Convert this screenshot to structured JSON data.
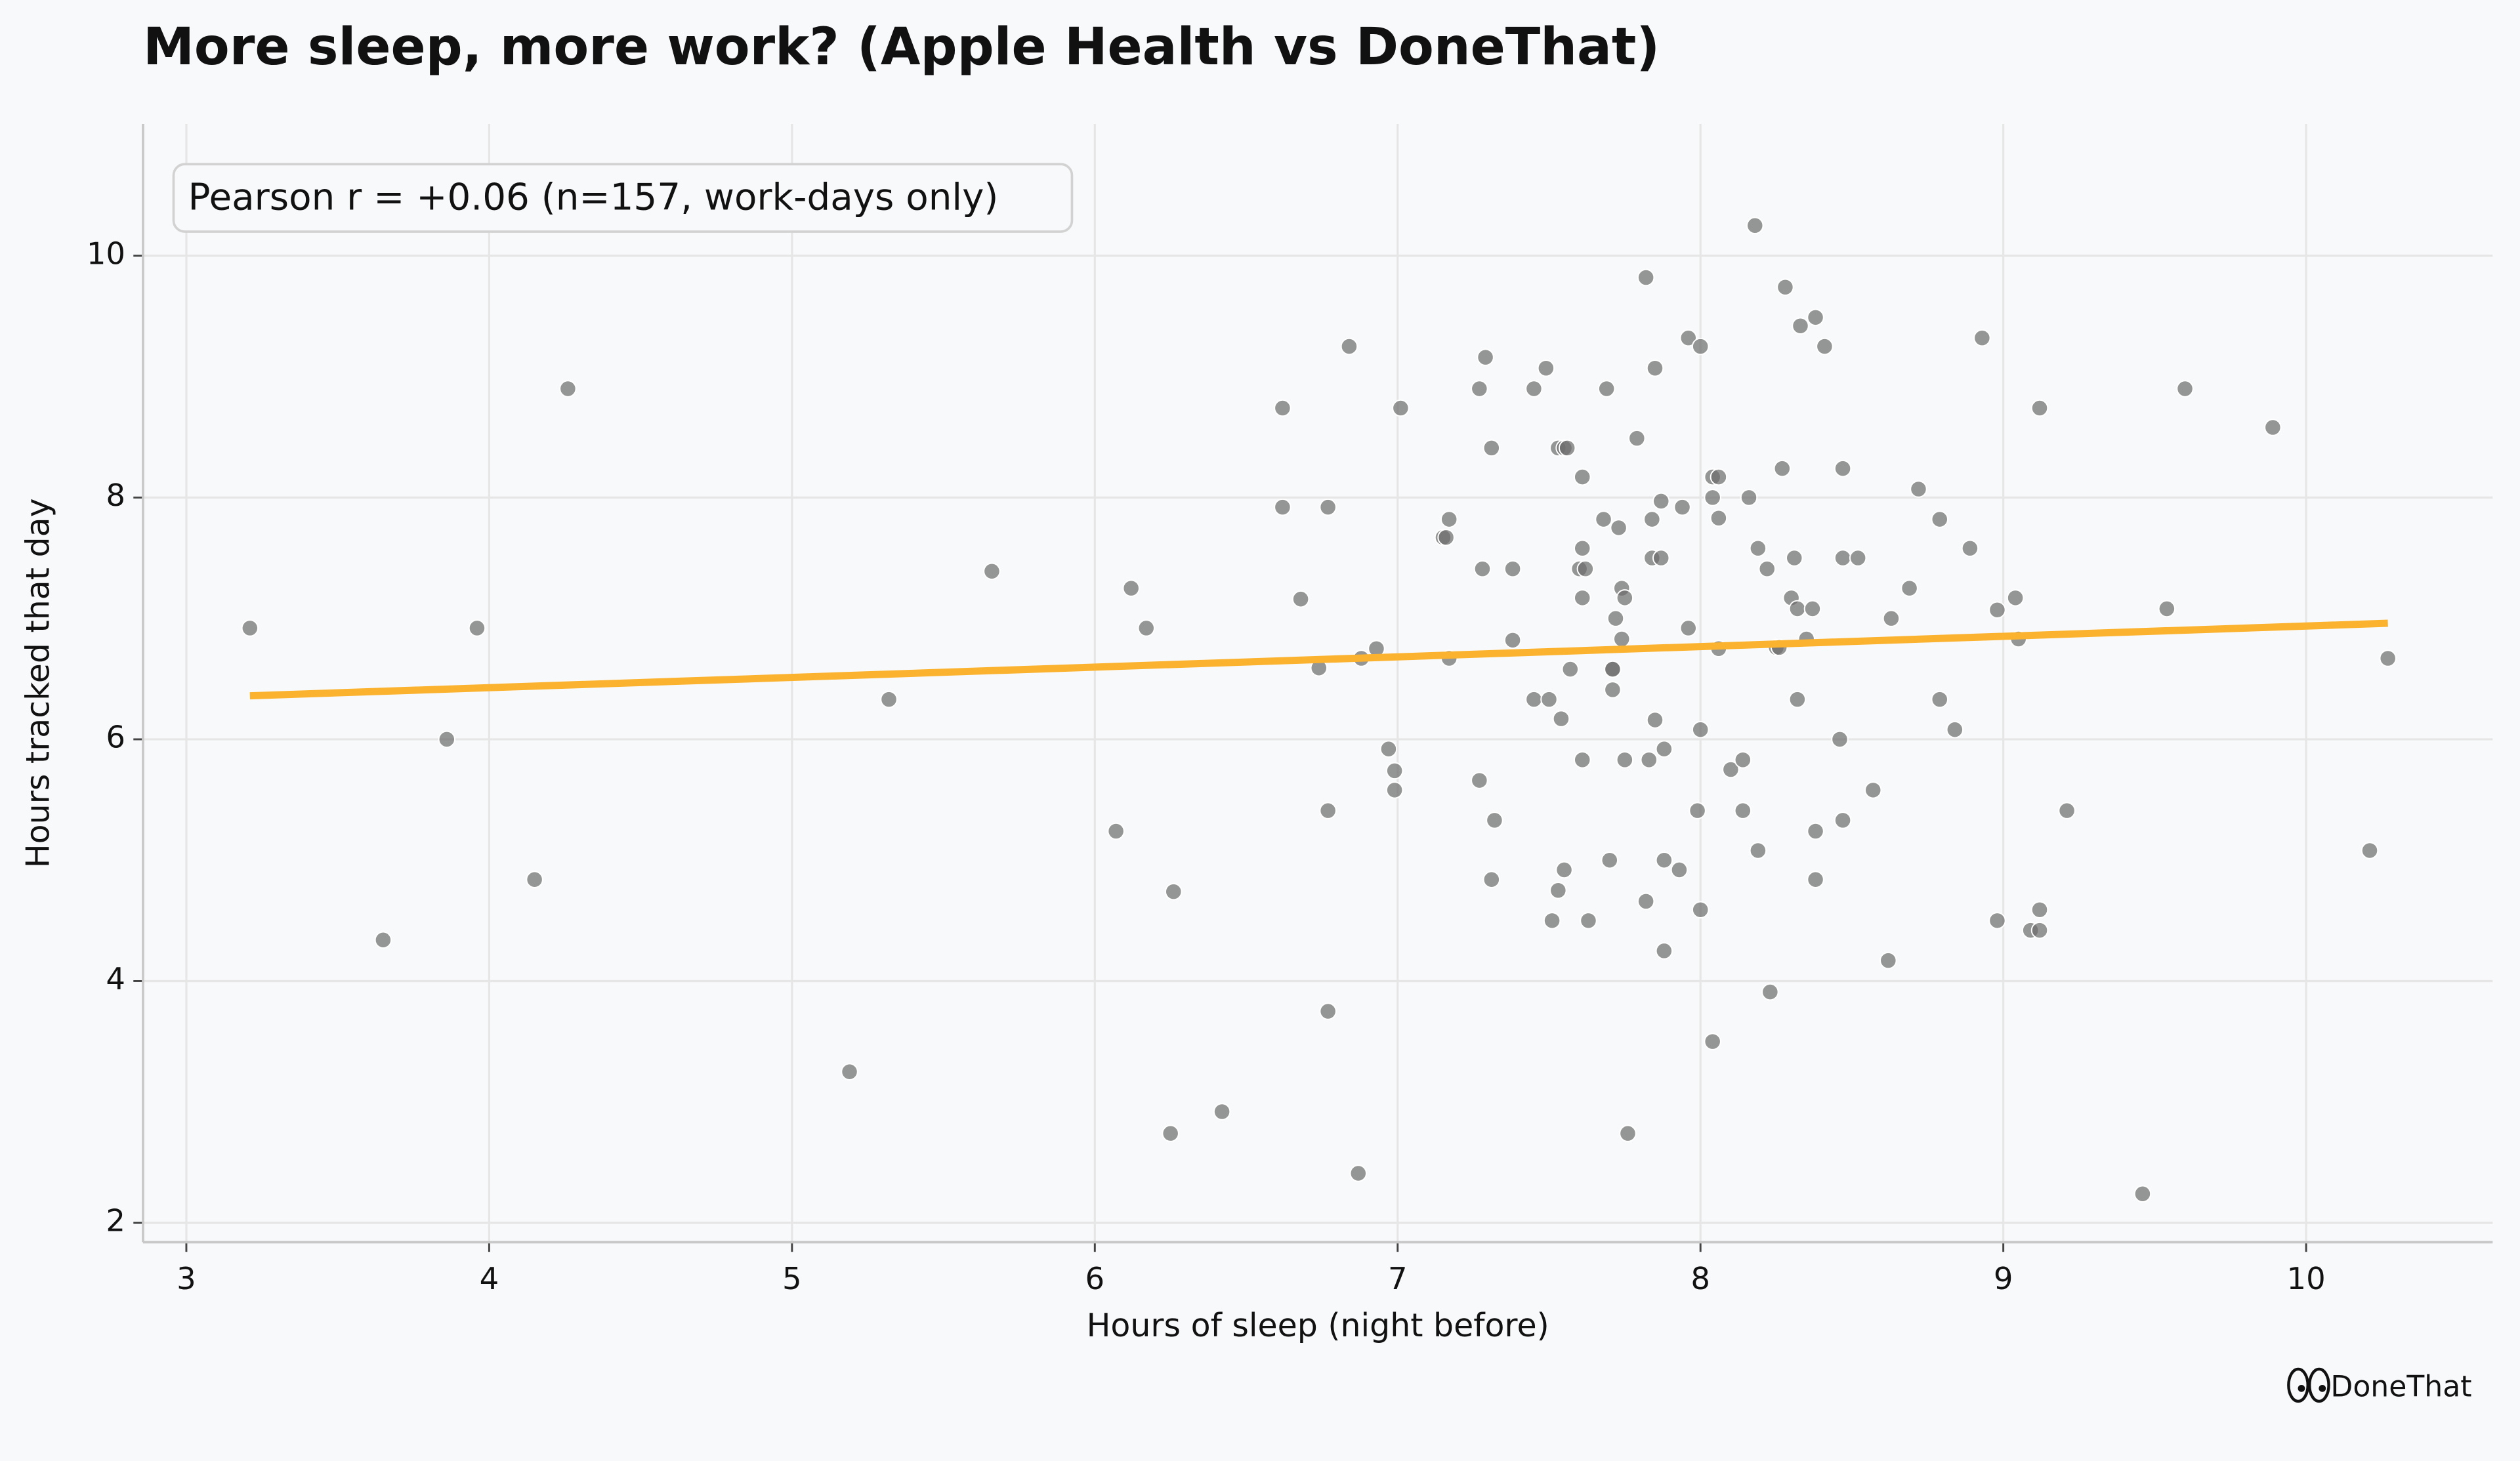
{
  "chart_data": {
    "type": "scatter",
    "title": "More sleep, more work? (Apple Health vs DoneThat)",
    "x_label": "Hours of sleep (night before)",
    "y_label": "Hours tracked that day",
    "annotation": "Pearson r = +0.06  (n=157, work-days only)",
    "brand": "DoneThat",
    "grid": true,
    "xlim": [
      2.857,
      10.616
    ],
    "ylim": [
      1.84,
      11.09
    ],
    "xticks": [
      3,
      4,
      5,
      6,
      7,
      8,
      9,
      10
    ],
    "yticks": [
      2,
      4,
      6,
      8,
      10
    ],
    "series": [
      {
        "color": "#6e6e6e",
        "x": [
          3.21,
          3.65,
          3.86,
          3.96,
          4.15,
          4.26,
          5.19,
          5.32,
          5.66,
          6.07,
          6.12,
          6.17,
          6.25,
          6.26,
          6.42,
          6.62,
          6.62,
          6.68,
          6.74,
          6.77,
          6.77,
          6.77,
          6.84,
          6.87,
          6.88,
          6.93,
          6.97,
          6.99,
          6.99,
          7.01,
          7.15,
          7.16,
          7.17,
          7.17,
          7.27,
          7.27,
          7.28,
          7.29,
          7.31,
          7.32,
          7.31,
          7.38,
          7.38,
          7.45,
          7.45,
          7.49,
          7.5,
          7.51,
          7.53,
          7.53,
          7.54,
          7.55,
          7.55,
          7.56,
          7.57,
          7.6,
          7.61,
          7.61,
          7.61,
          7.61,
          7.62,
          7.63,
          7.68,
          7.69,
          7.7,
          7.71,
          7.71,
          7.71,
          7.72,
          7.73,
          7.74,
          7.74,
          7.75,
          7.75,
          7.76,
          7.79,
          7.82,
          7.82,
          7.83,
          7.84,
          7.84,
          7.85,
          7.85,
          7.87,
          7.87,
          7.88,
          7.88,
          7.88,
          7.93,
          7.94,
          7.96,
          7.96,
          7.99,
          8.0,
          8.0,
          8.0,
          8.04,
          8.04,
          8.04,
          8.06,
          8.06,
          8.06,
          8.1,
          8.14,
          8.14,
          8.16,
          8.18,
          8.19,
          8.19,
          8.22,
          8.23,
          8.25,
          8.26,
          8.27,
          8.28,
          8.3,
          8.31,
          8.32,
          8.32,
          8.33,
          8.35,
          8.37,
          8.38,
          8.38,
          8.38,
          8.41,
          8.46,
          8.47,
          8.47,
          8.47,
          8.52,
          8.57,
          8.62,
          8.63,
          8.69,
          8.72,
          8.79,
          8.79,
          8.84,
          8.89,
          8.93,
          8.98,
          8.98,
          9.04,
          9.05,
          9.09,
          9.12,
          9.12,
          9.12,
          9.21,
          9.46,
          9.54,
          9.6,
          9.89,
          10.21,
          10.27
        ],
        "values": [
          6.92,
          4.34,
          6.0,
          6.92,
          4.84,
          8.9,
          3.25,
          6.33,
          7.39,
          5.24,
          7.25,
          6.92,
          2.74,
          4.74,
          2.92,
          8.74,
          7.92,
          7.16,
          6.59,
          7.92,
          5.41,
          3.75,
          9.25,
          2.41,
          6.67,
          6.75,
          5.92,
          5.74,
          5.58,
          8.74,
          7.67,
          7.67,
          7.82,
          6.67,
          8.9,
          5.66,
          7.41,
          9.16,
          8.41,
          5.33,
          4.84,
          7.41,
          6.82,
          6.33,
          8.9,
          9.07,
          6.33,
          4.5,
          8.41,
          4.75,
          6.17,
          8.41,
          4.92,
          8.41,
          6.58,
          7.41,
          7.17,
          5.83,
          7.58,
          8.17,
          7.41,
          4.5,
          7.82,
          8.9,
          5.0,
          6.58,
          6.58,
          6.41,
          7.0,
          7.75,
          7.25,
          6.83,
          7.17,
          5.83,
          2.74,
          8.49,
          9.82,
          4.66,
          5.83,
          7.5,
          7.82,
          9.07,
          6.16,
          7.97,
          7.5,
          5.92,
          4.25,
          5.0,
          4.92,
          7.92,
          9.32,
          6.92,
          5.41,
          9.25,
          6.08,
          4.59,
          8.17,
          8.0,
          3.5,
          8.17,
          7.83,
          6.75,
          5.75,
          5.83,
          5.41,
          8.0,
          10.25,
          7.58,
          5.08,
          7.41,
          3.91,
          6.76,
          6.76,
          8.24,
          9.74,
          7.17,
          7.5,
          7.08,
          6.33,
          9.42,
          6.83,
          7.08,
          9.49,
          5.24,
          4.84,
          9.25,
          6.0,
          8.24,
          7.5,
          5.33,
          7.5,
          5.58,
          4.17,
          7.0,
          7.25,
          8.07,
          7.82,
          6.33,
          6.08,
          7.58,
          9.32,
          7.07,
          4.5,
          7.17,
          6.83,
          4.42,
          4.42,
          4.59,
          8.74,
          5.41,
          2.24,
          7.08,
          8.9,
          8.58,
          5.08,
          6.67
        ]
      }
    ],
    "trendline": {
      "color": "#fbb32f",
      "x": [
        3.21,
        10.27
      ],
      "values": [
        6.36,
        6.96
      ]
    }
  }
}
